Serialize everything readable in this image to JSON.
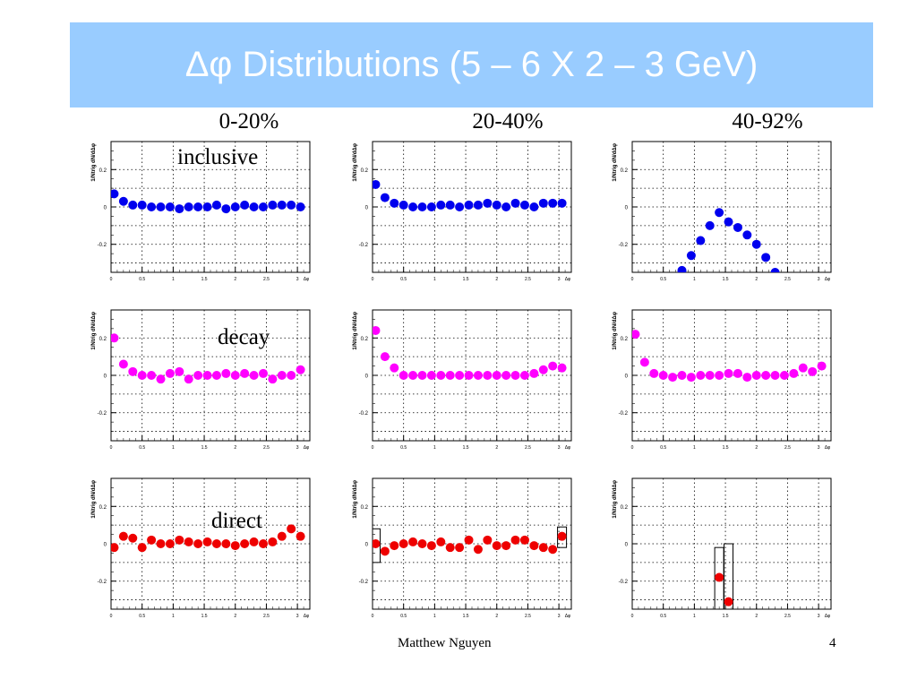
{
  "title": "Δφ Distributions (5 – 6 X 2 – 3 GeV)",
  "column_labels": [
    "0-20%",
    "20-40%",
    "40-92%"
  ],
  "row_labels": [
    "inclusive",
    "decay",
    "direct"
  ],
  "footer": {
    "author": "Matthew Nguyen",
    "page": "4"
  },
  "colors": {
    "inclusive": "#0000ee",
    "decay": "#ff00ff",
    "direct": "#ee0000",
    "title_bg": "#99ccff"
  },
  "chart_data": [
    {
      "type": "scatter",
      "row": "inclusive",
      "column": "0-20%",
      "ylabel": "1/Ntrig dN/dΔφ",
      "xlabel": "Δφ",
      "xlim": [
        0,
        3.2
      ],
      "ylim": [
        -0.35,
        0.35
      ],
      "yticks": [
        "0.2",
        "0",
        "-0.2"
      ],
      "xticks": [
        "0",
        "0.5",
        "1",
        "1.5",
        "2",
        "2.5",
        "3"
      ],
      "x": [
        0.05,
        0.2,
        0.35,
        0.5,
        0.65,
        0.8,
        0.95,
        1.1,
        1.25,
        1.4,
        1.55,
        1.7,
        1.85,
        2.0,
        2.15,
        2.3,
        2.45,
        2.6,
        2.75,
        2.9,
        3.05
      ],
      "y": [
        0.07,
        0.03,
        0.01,
        0.01,
        0.0,
        0.0,
        0.0,
        -0.01,
        0.0,
        0.0,
        0.0,
        0.01,
        -0.01,
        0.0,
        0.01,
        0.0,
        0.0,
        0.01,
        0.01,
        0.01,
        0.0
      ]
    },
    {
      "type": "scatter",
      "row": "inclusive",
      "column": "20-40%",
      "ylabel": "1/Ntrig dN/dΔφ",
      "xlabel": "Δφ",
      "xlim": [
        0,
        3.2
      ],
      "ylim": [
        -0.35,
        0.35
      ],
      "yticks": [
        "0.2",
        "0",
        "-0.2"
      ],
      "xticks": [
        "0",
        "0.5",
        "1",
        "1.5",
        "2",
        "2.5",
        "3"
      ],
      "x": [
        0.05,
        0.2,
        0.35,
        0.5,
        0.65,
        0.8,
        0.95,
        1.1,
        1.25,
        1.4,
        1.55,
        1.7,
        1.85,
        2.0,
        2.15,
        2.3,
        2.45,
        2.6,
        2.75,
        2.9,
        3.05
      ],
      "y": [
        0.12,
        0.05,
        0.02,
        0.01,
        0.0,
        0.0,
        0.0,
        0.01,
        0.01,
        0.0,
        0.01,
        0.01,
        0.02,
        0.01,
        0.0,
        0.02,
        0.01,
        0.0,
        0.02,
        0.02,
        0.02
      ]
    },
    {
      "type": "scatter",
      "row": "inclusive",
      "column": "40-92%",
      "ylabel": "1/Ntrig dN/dΔφ",
      "xlabel": "Δφ",
      "xlim": [
        0,
        3.2
      ],
      "ylim": [
        -0.35,
        0.35
      ],
      "yticks": [
        "0.2",
        "0",
        "-0.2"
      ],
      "xticks": [
        "0",
        "0.5",
        "1",
        "1.5",
        "2",
        "2.5",
        "3"
      ],
      "x": [
        0.8,
        0.95,
        1.1,
        1.25,
        1.4,
        1.55,
        1.7,
        1.85,
        2.0,
        2.15,
        2.3
      ],
      "y": [
        -0.34,
        -0.26,
        -0.18,
        -0.1,
        -0.03,
        -0.08,
        -0.11,
        -0.15,
        -0.2,
        -0.27,
        -0.35
      ]
    },
    {
      "type": "scatter",
      "row": "decay",
      "column": "0-20%",
      "ylabel": "1/Ntrig dN/dΔφ",
      "xlabel": "Δφ",
      "xlim": [
        0,
        3.2
      ],
      "ylim": [
        -0.35,
        0.35
      ],
      "yticks": [
        "0.2",
        "0",
        "-0.2"
      ],
      "xticks": [
        "0",
        "0.5",
        "1",
        "1.5",
        "2",
        "2.5",
        "3"
      ],
      "x": [
        0.05,
        0.2,
        0.35,
        0.5,
        0.65,
        0.8,
        0.95,
        1.1,
        1.25,
        1.4,
        1.55,
        1.7,
        1.85,
        2.0,
        2.15,
        2.3,
        2.45,
        2.6,
        2.75,
        2.9,
        3.05
      ],
      "y": [
        0.2,
        0.06,
        0.02,
        0.0,
        0.0,
        -0.02,
        0.01,
        0.02,
        -0.02,
        0.0,
        0.0,
        0.0,
        0.01,
        0.0,
        0.01,
        0.0,
        0.01,
        -0.02,
        0.0,
        0.0,
        0.03
      ]
    },
    {
      "type": "scatter",
      "row": "decay",
      "column": "20-40%",
      "ylabel": "1/Ntrig dN/dΔφ",
      "xlabel": "Δφ",
      "xlim": [
        0,
        3.2
      ],
      "ylim": [
        -0.35,
        0.35
      ],
      "yticks": [
        "0.2",
        "0",
        "-0.2"
      ],
      "xticks": [
        "0",
        "0.5",
        "1",
        "1.5",
        "2",
        "2.5",
        "3"
      ],
      "x": [
        0.05,
        0.2,
        0.35,
        0.5,
        0.65,
        0.8,
        0.95,
        1.1,
        1.25,
        1.4,
        1.55,
        1.7,
        1.85,
        2.0,
        2.15,
        2.3,
        2.45,
        2.6,
        2.75,
        2.9,
        3.05
      ],
      "y": [
        0.24,
        0.1,
        0.04,
        0.0,
        0.0,
        0.0,
        0.0,
        0.0,
        0.0,
        0.0,
        0.0,
        0.0,
        0.0,
        0.0,
        0.0,
        0.0,
        0.0,
        0.01,
        0.03,
        0.05,
        0.04
      ]
    },
    {
      "type": "scatter",
      "row": "decay",
      "column": "40-92%",
      "ylabel": "1/Ntrig dN/dΔφ",
      "xlabel": "Δφ",
      "xlim": [
        0,
        3.2
      ],
      "ylim": [
        -0.35,
        0.35
      ],
      "yticks": [
        "0.2",
        "0",
        "-0.2"
      ],
      "xticks": [
        "0",
        "0.5",
        "1",
        "1.5",
        "2",
        "2.5",
        "3"
      ],
      "x": [
        0.05,
        0.2,
        0.35,
        0.5,
        0.65,
        0.8,
        0.95,
        1.1,
        1.25,
        1.4,
        1.55,
        1.7,
        1.85,
        2.0,
        2.15,
        2.3,
        2.45,
        2.6,
        2.75,
        2.9,
        3.05
      ],
      "y": [
        0.22,
        0.07,
        0.01,
        0.0,
        -0.01,
        0.0,
        -0.01,
        0.0,
        0.0,
        0.0,
        0.01,
        0.01,
        -0.01,
        0.0,
        0.0,
        0.0,
        0.0,
        0.01,
        0.04,
        0.02,
        0.05
      ]
    },
    {
      "type": "scatter",
      "row": "direct",
      "column": "0-20%",
      "ylabel": "1/Ntrig dN/dΔφ",
      "xlabel": "Δφ",
      "xlim": [
        0,
        3.2
      ],
      "ylim": [
        -0.35,
        0.35
      ],
      "yticks": [
        "0.2",
        "0",
        "-0.2"
      ],
      "xticks": [
        "0",
        "0.5",
        "1",
        "1.5",
        "2",
        "2.5",
        "3"
      ],
      "x": [
        0.05,
        0.2,
        0.35,
        0.5,
        0.65,
        0.8,
        0.95,
        1.1,
        1.25,
        1.4,
        1.55,
        1.7,
        1.85,
        2.0,
        2.15,
        2.3,
        2.45,
        2.6,
        2.75,
        2.9,
        3.05
      ],
      "y": [
        -0.02,
        0.04,
        0.03,
        -0.02,
        0.02,
        0.0,
        0.0,
        0.02,
        0.01,
        0.0,
        0.01,
        0.0,
        0.0,
        -0.01,
        0.0,
        0.01,
        0.0,
        0.01,
        0.04,
        0.08,
        0.04
      ]
    },
    {
      "type": "scatter",
      "row": "direct",
      "column": "20-40%",
      "ylabel": "1/Ntrig dN/dΔφ",
      "xlabel": "Δφ",
      "xlim": [
        0,
        3.2
      ],
      "ylim": [
        -0.35,
        0.35
      ],
      "yticks": [
        "0.2",
        "0",
        "-0.2"
      ],
      "xticks": [
        "0",
        "0.5",
        "1",
        "1.5",
        "2",
        "2.5",
        "3"
      ],
      "x": [
        0.05,
        0.2,
        0.35,
        0.5,
        0.65,
        0.8,
        0.95,
        1.1,
        1.25,
        1.4,
        1.55,
        1.7,
        1.85,
        2.0,
        2.15,
        2.3,
        2.45,
        2.6,
        2.75,
        2.9,
        3.05
      ],
      "y": [
        0.0,
        -0.04,
        -0.01,
        0.0,
        0.01,
        0.0,
        -0.01,
        0.01,
        -0.02,
        -0.02,
        0.02,
        -0.03,
        0.02,
        -0.01,
        -0.01,
        0.02,
        0.02,
        -0.01,
        -0.02,
        -0.03,
        0.04
      ],
      "systematic_boxes": [
        {
          "x": 0.05,
          "ylow": -0.1,
          "yhigh": 0.08
        },
        {
          "x": 3.05,
          "ylow": -0.02,
          "yhigh": 0.09
        }
      ]
    },
    {
      "type": "scatter",
      "row": "direct",
      "column": "40-92%",
      "ylabel": "1/Ntrig dN/dΔφ",
      "xlabel": "Δφ",
      "xlim": [
        0,
        3.2
      ],
      "ylim": [
        -0.35,
        0.35
      ],
      "yticks": [
        "0.2",
        "0",
        "-0.2"
      ],
      "xticks": [
        "0",
        "0.5",
        "1",
        "1.5",
        "2",
        "2.5",
        "3"
      ],
      "x": [
        1.4,
        1.55
      ],
      "y": [
        -0.18,
        -0.31
      ],
      "systematic_boxes": [
        {
          "x": 1.4,
          "ylow": -0.35,
          "yhigh": -0.02
        },
        {
          "x": 1.55,
          "ylow": -0.35,
          "yhigh": 0.0
        }
      ]
    }
  ]
}
